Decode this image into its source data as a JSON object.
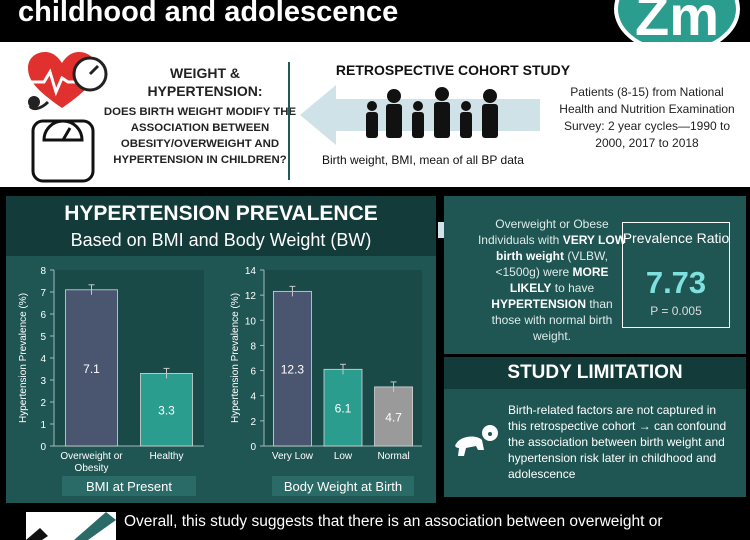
{
  "header": {
    "title": "childhood and adolescence",
    "logo_text": "Zm"
  },
  "study": {
    "weight_hypertension_title": "WEIGHT & HYPERTENSION:",
    "weight_hypertension_question": "DOES BIRTH WEIGHT MODIFY THE ASSOCIATION BETWEEN OBESITY/OVERWEIGHT AND HYPERTENSION IN CHILDREN?",
    "design": "RETROSPECTIVE COHORT STUDY",
    "data_collected": "Birth weight, BMI, mean of all BP data",
    "patients": "Patients (8-15) from National Health and Nutrition Examination Survey: 2 year cycles—1990 to 2000, 2017 to 2018"
  },
  "prevalence": {
    "title": "HYPERTENSION PREVALENCE",
    "subtitle": "Based on BMI and Body Weight (BW)"
  },
  "chart_data": [
    {
      "type": "bar",
      "categories": [
        "Overweight or Obesity",
        "Healthy"
      ],
      "values": [
        7.1,
        3.3
      ],
      "ylabel": "Hypertension Prevalence (%)",
      "xlabel": "BMI at Present",
      "ylim": [
        0,
        8
      ],
      "yticks": [
        0,
        1,
        2,
        3,
        4,
        5,
        6,
        7,
        8
      ],
      "bar_colors": [
        "#4a5670",
        "#2a9d8f"
      ],
      "error_bars": true
    },
    {
      "type": "bar",
      "categories": [
        "Very Low",
        "Low",
        "Normal"
      ],
      "values": [
        12.3,
        6.1,
        4.7
      ],
      "ylabel": "Hypertension Prevalence (%)",
      "xlabel": "Body Weight at Birth",
      "ylim": [
        0,
        14
      ],
      "yticks": [
        0,
        2,
        4,
        6,
        8,
        10,
        12,
        14
      ],
      "bar_colors": [
        "#4a5670",
        "#2a9d8f",
        "#9a9a9a"
      ],
      "error_bars": true
    }
  ],
  "finding": {
    "text": "Overweight or Obese Individuals with VERY LOW birth weight (VLBW, <1500g) were MORE LIKELY to have HYPERTENSION than those with normal birth weight.",
    "ratio_label": "Prevalence Ratio",
    "ratio_value": "7.73",
    "p_value": "P = 0.005"
  },
  "limitation": {
    "title": "STUDY LIMITATION",
    "text": "Birth-related factors are not captured in this retrospective cohort → can confound the association between birth weight and hypertension risk later in childhood and adolescence"
  },
  "conclusion": {
    "text": "Overall, this study suggests that there is an association between overweight or"
  },
  "colors": {
    "panel_teal": "#1f5553",
    "panel_dark": "#133b39",
    "accent": "#2a9d8f",
    "ratio_value": "#7fe0e0",
    "bar_slate": "#4a5670",
    "bar_gray": "#9a9a9a"
  },
  "icons": [
    "heart-icon",
    "scale-icon",
    "people-icon",
    "arrow-left-icon",
    "arrow-right-icon",
    "baby-icon",
    "logo-icon"
  ]
}
